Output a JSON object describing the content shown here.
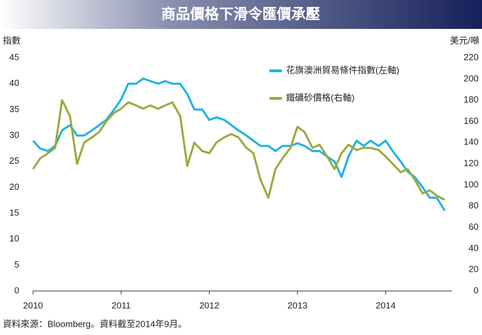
{
  "chart_data": {
    "type": "line",
    "title": "商品價格下滑令匯價承壓",
    "y_label": "指數",
    "y2_label": "美元/噸",
    "source": "資料來源：Bloomberg。資料截至2014年9月。",
    "x": [
      2010.0,
      2010.08,
      2010.17,
      2010.25,
      2010.33,
      2010.42,
      2010.5,
      2010.58,
      2010.67,
      2010.75,
      2010.83,
      2010.92,
      2011.0,
      2011.08,
      2011.17,
      2011.25,
      2011.33,
      2011.42,
      2011.5,
      2011.58,
      2011.67,
      2011.75,
      2011.83,
      2011.92,
      2012.0,
      2012.08,
      2012.17,
      2012.25,
      2012.33,
      2012.42,
      2012.5,
      2012.58,
      2012.67,
      2012.75,
      2012.83,
      2012.92,
      2013.0,
      2013.08,
      2013.17,
      2013.25,
      2013.33,
      2013.42,
      2013.5,
      2013.58,
      2013.67,
      2013.75,
      2013.83,
      2013.92,
      2014.0,
      2014.08,
      2014.17,
      2014.25,
      2014.33,
      2014.42,
      2014.5,
      2014.58,
      2014.67
    ],
    "xlim": [
      2010,
      2014.75
    ],
    "xticks": [
      2010,
      2011,
      2012,
      2013,
      2014
    ],
    "ylim": [
      0,
      45
    ],
    "yticks": [
      0,
      5,
      10,
      15,
      20,
      25,
      30,
      35,
      40,
      45
    ],
    "y2lim": [
      0,
      220
    ],
    "y2ticks": [
      0,
      20,
      40,
      60,
      80,
      100,
      120,
      140,
      160,
      180,
      200,
      220
    ],
    "series": [
      {
        "name": "花旗澳洲貿易條件指數(左軸)",
        "color": "#1fb3e3",
        "values": [
          29,
          27.5,
          27,
          28,
          31,
          32,
          30,
          30,
          31,
          32,
          33,
          35,
          37,
          40,
          40,
          41,
          40.5,
          40,
          40.5,
          40,
          40,
          38,
          35,
          35,
          33,
          33.5,
          33,
          32,
          31,
          30,
          29,
          28,
          28,
          27,
          28,
          28,
          28.5,
          28,
          27,
          27,
          26,
          25,
          22,
          26,
          29,
          28,
          29,
          28,
          29,
          27,
          25,
          23,
          22,
          20,
          18,
          18,
          15.5
        ]
      },
      {
        "name": "鐵礦砂價格(右軸)",
        "color": "#9aaa3c",
        "axis": "y2",
        "values": [
          115,
          125,
          130,
          135,
          180,
          165,
          120,
          140,
          145,
          150,
          160,
          168,
          172,
          178,
          175,
          172,
          175,
          172,
          175,
          178,
          165,
          118,
          140,
          132,
          130,
          140,
          145,
          148,
          145,
          135,
          130,
          105,
          88,
          115,
          125,
          135,
          155,
          150,
          135,
          138,
          128,
          115,
          130,
          138,
          133,
          135,
          135,
          133,
          127,
          120,
          112,
          115,
          105,
          92,
          95,
          90,
          86
        ]
      }
    ]
  }
}
